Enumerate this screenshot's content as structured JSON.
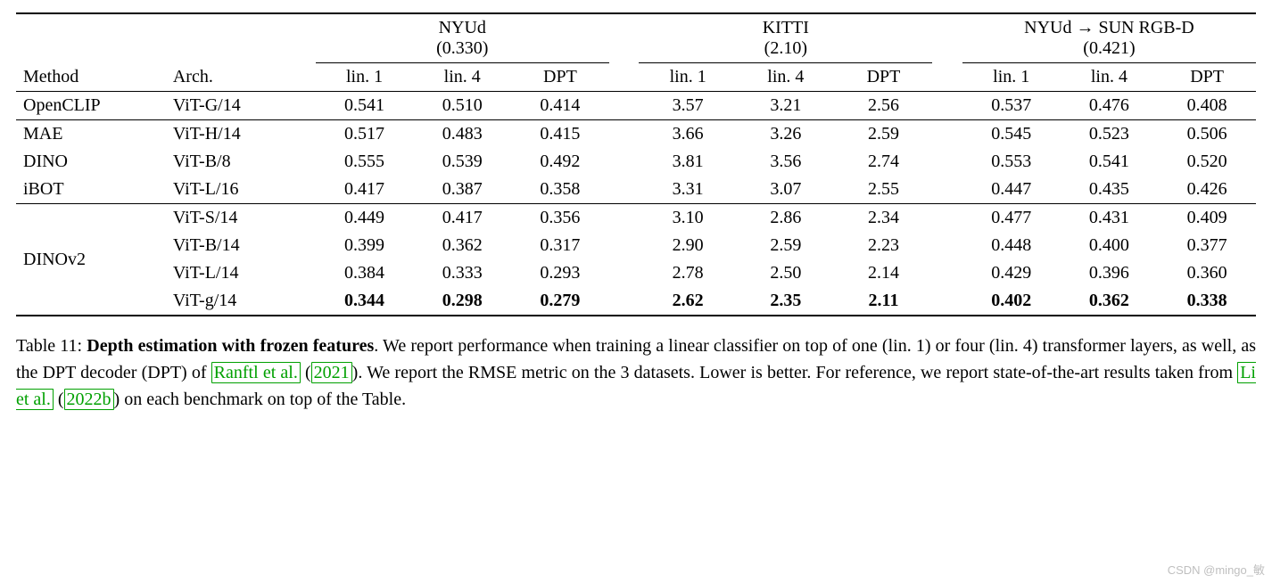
{
  "colors": {
    "text": "#000000",
    "bg": "#ffffff",
    "cite": "#00a000",
    "watermark": "#bfbfbf"
  },
  "table": {
    "groups": [
      {
        "title": "NYUd",
        "sub": "(0.330)",
        "cols": [
          "lin. 1",
          "lin. 4",
          "DPT"
        ]
      },
      {
        "title": "KITTI",
        "sub": "(2.10)",
        "cols": [
          "lin. 1",
          "lin. 4",
          "DPT"
        ]
      },
      {
        "title": "NYUd → SUN RGB-D",
        "sub": "(0.421)",
        "cols": [
          "lin. 1",
          "lin. 4",
          "DPT"
        ]
      }
    ],
    "head_method": "Method",
    "head_arch": "Arch.",
    "sections": [
      {
        "rows": [
          {
            "method": "OpenCLIP",
            "arch": "ViT-G/14",
            "vals": [
              "0.541",
              "0.510",
              "0.414",
              "3.57",
              "3.21",
              "2.56",
              "0.537",
              "0.476",
              "0.408"
            ],
            "bold": false
          }
        ]
      },
      {
        "rows": [
          {
            "method": "MAE",
            "arch": "ViT-H/14",
            "vals": [
              "0.517",
              "0.483",
              "0.415",
              "3.66",
              "3.26",
              "2.59",
              "0.545",
              "0.523",
              "0.506"
            ],
            "bold": false
          },
          {
            "method": "DINO",
            "arch": "ViT-B/8",
            "vals": [
              "0.555",
              "0.539",
              "0.492",
              "3.81",
              "3.56",
              "2.74",
              "0.553",
              "0.541",
              "0.520"
            ],
            "bold": false
          },
          {
            "method": "iBOT",
            "arch": "ViT-L/16",
            "vals": [
              "0.417",
              "0.387",
              "0.358",
              "3.31",
              "3.07",
              "2.55",
              "0.447",
              "0.435",
              "0.426"
            ],
            "bold": false
          }
        ]
      },
      {
        "rowspan_method": "DINOv2",
        "rows": [
          {
            "arch": "ViT-S/14",
            "vals": [
              "0.449",
              "0.417",
              "0.356",
              "3.10",
              "2.86",
              "2.34",
              "0.477",
              "0.431",
              "0.409"
            ],
            "bold": false
          },
          {
            "arch": "ViT-B/14",
            "vals": [
              "0.399",
              "0.362",
              "0.317",
              "2.90",
              "2.59",
              "2.23",
              "0.448",
              "0.400",
              "0.377"
            ],
            "bold": false
          },
          {
            "arch": "ViT-L/14",
            "vals": [
              "0.384",
              "0.333",
              "0.293",
              "2.78",
              "2.50",
              "2.14",
              "0.429",
              "0.396",
              "0.360"
            ],
            "bold": false
          },
          {
            "arch": "ViT-g/14",
            "vals": [
              "0.344",
              "0.298",
              "0.279",
              "2.62",
              "2.35",
              "2.11",
              "0.402",
              "0.362",
              "0.338"
            ],
            "bold": true
          }
        ]
      }
    ]
  },
  "caption": {
    "label": "Table 11:",
    "title": "Depth estimation with frozen features",
    "body_pre": ". We report performance when training a linear classifier on top of one (lin. 1) or four (lin. 4) transformer layers, as well, as the DPT decoder (DPT) of ",
    "cite1_author": "Ranftl et al.",
    "cite1_year": "2021",
    "body_mid": ". We report the RMSE metric on the 3 datasets. Lower is better. For reference, we report state-of-the-art results taken from ",
    "cite2_author": "Li et al.",
    "cite2_year": "2022b",
    "body_post": " on each benchmark on top of the Table."
  },
  "watermark": "CSDN @mingo_敏"
}
